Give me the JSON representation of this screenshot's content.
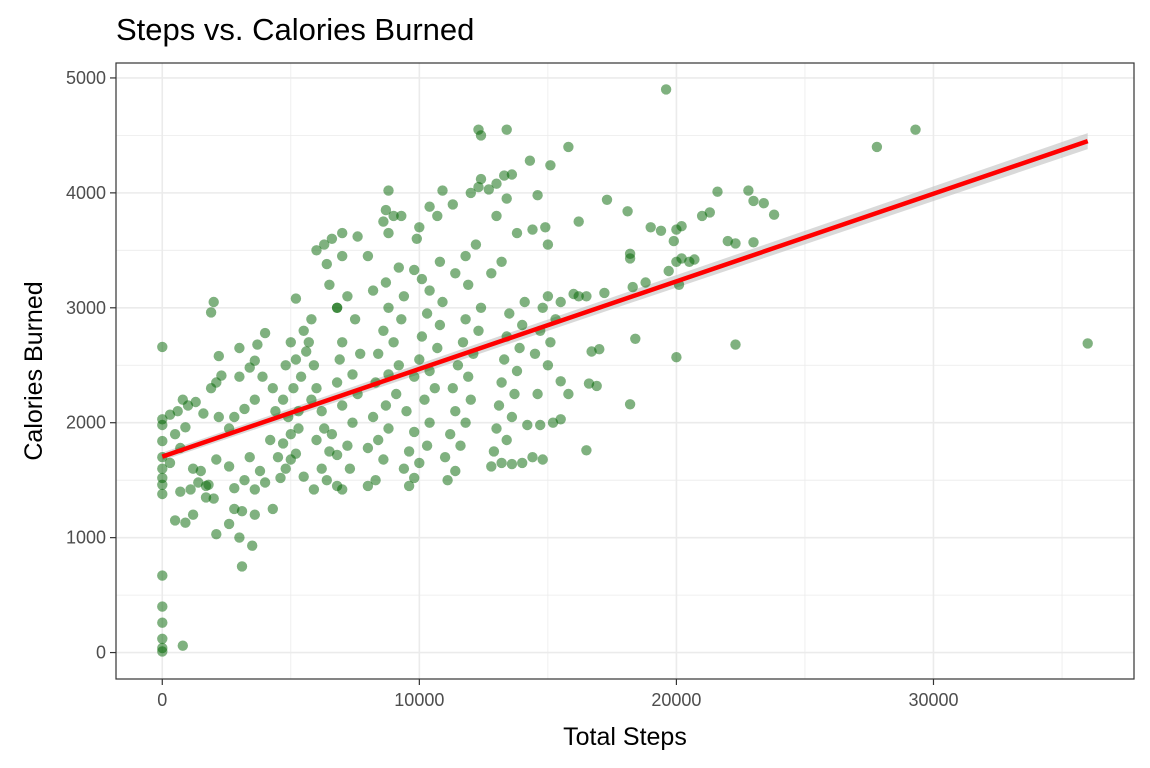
{
  "chart_data": {
    "type": "scatter",
    "title": "Steps vs. Calories Burned",
    "xlabel": "Total Steps",
    "ylabel": "Calories Burned",
    "xlim": [
      -1800,
      37800
    ],
    "ylim": [
      -230,
      5130
    ],
    "x_ticks": [
      0,
      10000,
      20000,
      30000
    ],
    "x_tick_labels": [
      "0",
      "10000",
      "20000",
      "30000"
    ],
    "y_ticks": [
      0,
      1000,
      2000,
      3000,
      4000,
      5000
    ],
    "y_tick_labels": [
      "0",
      "1000",
      "2000",
      "3000",
      "4000",
      "5000"
    ],
    "grid": true,
    "colors": {
      "points": "#006400",
      "trend": "#ff0000",
      "band": "#bfbfbf",
      "grid": "#ebebeb",
      "panel_border": "#333333"
    },
    "trend_line": {
      "x": [
        0,
        36000
      ],
      "y": [
        1705,
        4450
      ]
    },
    "series": [
      {
        "points": [
          [
            0,
            2660
          ],
          [
            0,
            2030
          ],
          [
            0,
            1980
          ],
          [
            0,
            1840
          ],
          [
            0,
            1700
          ],
          [
            0,
            1600
          ],
          [
            0,
            1520
          ],
          [
            0,
            1460
          ],
          [
            0,
            1380
          ],
          [
            0,
            670
          ],
          [
            0,
            400
          ],
          [
            0,
            260
          ],
          [
            0,
            120
          ],
          [
            0,
            40
          ],
          [
            0,
            10
          ],
          [
            800,
            60
          ],
          [
            500,
            1150
          ],
          [
            900,
            1130
          ],
          [
            1200,
            1200
          ],
          [
            700,
            1400
          ],
          [
            1100,
            1420
          ],
          [
            1400,
            1480
          ],
          [
            1700,
            1450
          ],
          [
            300,
            1650
          ],
          [
            700,
            1780
          ],
          [
            500,
            1900
          ],
          [
            900,
            1960
          ],
          [
            300,
            2070
          ],
          [
            600,
            2100
          ],
          [
            1000,
            2150
          ],
          [
            800,
            2200
          ],
          [
            1300,
            2180
          ],
          [
            1200,
            1600
          ],
          [
            1500,
            1580
          ],
          [
            1800,
            1460
          ],
          [
            1700,
            1350
          ],
          [
            2000,
            1340
          ],
          [
            2100,
            1680
          ],
          [
            1600,
            2080
          ],
          [
            2200,
            2050
          ],
          [
            1900,
            2300
          ],
          [
            2100,
            2350
          ],
          [
            2300,
            2410
          ],
          [
            1900,
            2960
          ],
          [
            2000,
            3050
          ],
          [
            2200,
            2580
          ],
          [
            2100,
            1030
          ],
          [
            2600,
            1120
          ],
          [
            2800,
            1250
          ],
          [
            3000,
            1000
          ],
          [
            3100,
            750
          ],
          [
            3500,
            930
          ],
          [
            3100,
            1230
          ],
          [
            3600,
            1200
          ],
          [
            4300,
            1250
          ],
          [
            2800,
            1430
          ],
          [
            3200,
            1500
          ],
          [
            2600,
            1620
          ],
          [
            3400,
            1700
          ],
          [
            3800,
            1580
          ],
          [
            2600,
            1950
          ],
          [
            2800,
            2050
          ],
          [
            3200,
            2120
          ],
          [
            3600,
            2200
          ],
          [
            3000,
            2400
          ],
          [
            3400,
            2480
          ],
          [
            3600,
            2540
          ],
          [
            3000,
            2650
          ],
          [
            3700,
            2680
          ],
          [
            4000,
            2780
          ],
          [
            3900,
            2400
          ],
          [
            4300,
            2300
          ],
          [
            4400,
            2100
          ],
          [
            4200,
            1850
          ],
          [
            4500,
            1700
          ],
          [
            3600,
            1420
          ],
          [
            4000,
            1480
          ],
          [
            4600,
            1520
          ],
          [
            4800,
            1600
          ],
          [
            5000,
            1680
          ],
          [
            5200,
            1730
          ],
          [
            4700,
            1820
          ],
          [
            5000,
            1900
          ],
          [
            5300,
            1950
          ],
          [
            4900,
            2050
          ],
          [
            5300,
            2100
          ],
          [
            4700,
            2200
          ],
          [
            5100,
            2300
          ],
          [
            5400,
            2400
          ],
          [
            4800,
            2500
          ],
          [
            5200,
            2550
          ],
          [
            5600,
            2620
          ],
          [
            5000,
            2700
          ],
          [
            5500,
            2800
          ],
          [
            5200,
            3080
          ],
          [
            5800,
            2900
          ],
          [
            5700,
            2700
          ],
          [
            5900,
            2500
          ],
          [
            6000,
            2300
          ],
          [
            5800,
            2200
          ],
          [
            6200,
            2100
          ],
          [
            6300,
            1950
          ],
          [
            6000,
            1850
          ],
          [
            6500,
            1750
          ],
          [
            6200,
            1600
          ],
          [
            6400,
            1500
          ],
          [
            5900,
            1420
          ],
          [
            5500,
            1530
          ],
          [
            6800,
            1450
          ],
          [
            7000,
            1420
          ],
          [
            7300,
            1600
          ],
          [
            6800,
            1720
          ],
          [
            7200,
            1800
          ],
          [
            6600,
            1900
          ],
          [
            7400,
            2000
          ],
          [
            7000,
            2150
          ],
          [
            7600,
            2250
          ],
          [
            6800,
            2350
          ],
          [
            7400,
            2420
          ],
          [
            6900,
            2550
          ],
          [
            7700,
            2600
          ],
          [
            7000,
            2700
          ],
          [
            7500,
            2900
          ],
          [
            6800,
            3000
          ],
          [
            7200,
            3100
          ],
          [
            6500,
            3200
          ],
          [
            7000,
            3450
          ],
          [
            6300,
            3550
          ],
          [
            6600,
            3600
          ],
          [
            7000,
            3650
          ],
          [
            7600,
            3620
          ],
          [
            6000,
            3500
          ],
          [
            6400,
            3380
          ],
          [
            6800,
            3000
          ],
          [
            8000,
            1450
          ],
          [
            8300,
            1500
          ],
          [
            8600,
            1680
          ],
          [
            8000,
            1780
          ],
          [
            8400,
            1850
          ],
          [
            8800,
            1950
          ],
          [
            8200,
            2050
          ],
          [
            8700,
            2150
          ],
          [
            9100,
            2250
          ],
          [
            8300,
            2350
          ],
          [
            8800,
            2420
          ],
          [
            9200,
            2500
          ],
          [
            8400,
            2600
          ],
          [
            9000,
            2700
          ],
          [
            8600,
            2800
          ],
          [
            9300,
            2900
          ],
          [
            8800,
            3000
          ],
          [
            9400,
            3100
          ],
          [
            8200,
            3150
          ],
          [
            8700,
            3220
          ],
          [
            8600,
            3750
          ],
          [
            8700,
            3850
          ],
          [
            9000,
            3800
          ],
          [
            9300,
            3800
          ],
          [
            8800,
            3650
          ],
          [
            8800,
            4020
          ],
          [
            8000,
            3450
          ],
          [
            9200,
            3350
          ],
          [
            9800,
            3330
          ],
          [
            9900,
            3600
          ],
          [
            9600,
            1450
          ],
          [
            9800,
            1520
          ],
          [
            9400,
            1600
          ],
          [
            10000,
            1650
          ],
          [
            9600,
            1750
          ],
          [
            10300,
            1800
          ],
          [
            9800,
            1920
          ],
          [
            10400,
            2000
          ],
          [
            9500,
            2100
          ],
          [
            10200,
            2200
          ],
          [
            10600,
            2300
          ],
          [
            9800,
            2400
          ],
          [
            10400,
            2450
          ],
          [
            10000,
            2550
          ],
          [
            10700,
            2650
          ],
          [
            10100,
            2750
          ],
          [
            10800,
            2850
          ],
          [
            10300,
            2950
          ],
          [
            10900,
            3050
          ],
          [
            10400,
            3150
          ],
          [
            10100,
            3250
          ],
          [
            10800,
            3400
          ],
          [
            10000,
            3700
          ],
          [
            10400,
            3880
          ],
          [
            10900,
            4020
          ],
          [
            10700,
            3800
          ],
          [
            11300,
            3900
          ],
          [
            11100,
            1500
          ],
          [
            11400,
            1580
          ],
          [
            11000,
            1700
          ],
          [
            11600,
            1800
          ],
          [
            11200,
            1900
          ],
          [
            11800,
            2000
          ],
          [
            11400,
            2100
          ],
          [
            12000,
            2200
          ],
          [
            11300,
            2300
          ],
          [
            11900,
            2400
          ],
          [
            11500,
            2500
          ],
          [
            12100,
            2600
          ],
          [
            11700,
            2700
          ],
          [
            12300,
            2800
          ],
          [
            11800,
            2900
          ],
          [
            12400,
            3000
          ],
          [
            11900,
            3200
          ],
          [
            11400,
            3300
          ],
          [
            11800,
            3450
          ],
          [
            12200,
            3550
          ],
          [
            12000,
            4000
          ],
          [
            12300,
            4050
          ],
          [
            12400,
            4120
          ],
          [
            12300,
            4550
          ],
          [
            12400,
            4500
          ],
          [
            12700,
            4030
          ],
          [
            13000,
            4080
          ],
          [
            13300,
            4150
          ],
          [
            13400,
            4550
          ],
          [
            13600,
            4160
          ],
          [
            14300,
            4280
          ],
          [
            14600,
            3980
          ],
          [
            15100,
            4240
          ],
          [
            15800,
            4400
          ],
          [
            12800,
            1620
          ],
          [
            13200,
            1650
          ],
          [
            13600,
            1640
          ],
          [
            12900,
            1750
          ],
          [
            13400,
            1850
          ],
          [
            13000,
            1950
          ],
          [
            13600,
            2050
          ],
          [
            13100,
            2150
          ],
          [
            13700,
            2250
          ],
          [
            13200,
            2350
          ],
          [
            13800,
            2450
          ],
          [
            13300,
            2550
          ],
          [
            13900,
            2650
          ],
          [
            13400,
            2750
          ],
          [
            14000,
            2850
          ],
          [
            13500,
            2950
          ],
          [
            14100,
            3050
          ],
          [
            12800,
            3300
          ],
          [
            13200,
            3400
          ],
          [
            13000,
            3800
          ],
          [
            13400,
            3950
          ],
          [
            13800,
            3650
          ],
          [
            14400,
            3680
          ],
          [
            14900,
            3700
          ],
          [
            15000,
            3550
          ],
          [
            14000,
            1650
          ],
          [
            14400,
            1700
          ],
          [
            14800,
            1680
          ],
          [
            14200,
            1980
          ],
          [
            14700,
            1980
          ],
          [
            15200,
            2000
          ],
          [
            15500,
            2030
          ],
          [
            14600,
            2250
          ],
          [
            15000,
            2500
          ],
          [
            14500,
            2600
          ],
          [
            15100,
            2700
          ],
          [
            14700,
            2800
          ],
          [
            15300,
            2900
          ],
          [
            14800,
            3000
          ],
          [
            15500,
            3050
          ],
          [
            15000,
            3100
          ],
          [
            15500,
            2360
          ],
          [
            15800,
            2250
          ],
          [
            16200,
            3100
          ],
          [
            16000,
            3120
          ],
          [
            16500,
            3100
          ],
          [
            16200,
            3750
          ],
          [
            16700,
            2620
          ],
          [
            17000,
            2640
          ],
          [
            16600,
            2340
          ],
          [
            16900,
            2320
          ],
          [
            16500,
            1760
          ],
          [
            17200,
            3130
          ],
          [
            17300,
            3940
          ],
          [
            18100,
            3840
          ],
          [
            18200,
            3470
          ],
          [
            18200,
            3430
          ],
          [
            18300,
            3180
          ],
          [
            18200,
            2160
          ],
          [
            18400,
            2730
          ],
          [
            18800,
            3220
          ],
          [
            19000,
            3700
          ],
          [
            19400,
            3670
          ],
          [
            19600,
            4900
          ],
          [
            19900,
            3580
          ],
          [
            20000,
            3680
          ],
          [
            20200,
            3710
          ],
          [
            19700,
            3320
          ],
          [
            20000,
            3400
          ],
          [
            20200,
            3430
          ],
          [
            20500,
            3400
          ],
          [
            20700,
            3420
          ],
          [
            20100,
            3200
          ],
          [
            20000,
            2570
          ],
          [
            21000,
            3800
          ],
          [
            21300,
            3830
          ],
          [
            21600,
            4010
          ],
          [
            22000,
            3580
          ],
          [
            22300,
            3560
          ],
          [
            22300,
            2680
          ],
          [
            22800,
            4020
          ],
          [
            23000,
            3930
          ],
          [
            23000,
            3570
          ],
          [
            23400,
            3910
          ],
          [
            23800,
            3810
          ],
          [
            27800,
            4400
          ],
          [
            29300,
            4550
          ],
          [
            36000,
            2690
          ]
        ]
      }
    ]
  }
}
